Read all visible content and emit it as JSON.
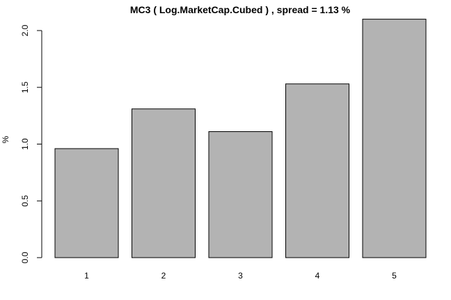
{
  "chart_data": {
    "type": "bar",
    "title": "MC3 ( Log.MarketCap.Cubed ) , spread = 1.13 %",
    "xlabel": "",
    "ylabel": "%",
    "categories": [
      "1",
      "2",
      "3",
      "4",
      "5"
    ],
    "values": [
      0.96,
      1.31,
      1.11,
      1.53,
      2.1
    ],
    "ylim": [
      0,
      2.1
    ],
    "yticks": [
      0.0,
      0.5,
      1.0,
      1.5,
      2.0
    ],
    "ytick_labels": [
      "0.0",
      "0.5",
      "1.0",
      "1.5",
      "2.0"
    ],
    "grid": false,
    "legend": "none",
    "bar_color": "#b3b3b3",
    "bar_border_color": "#000000"
  }
}
